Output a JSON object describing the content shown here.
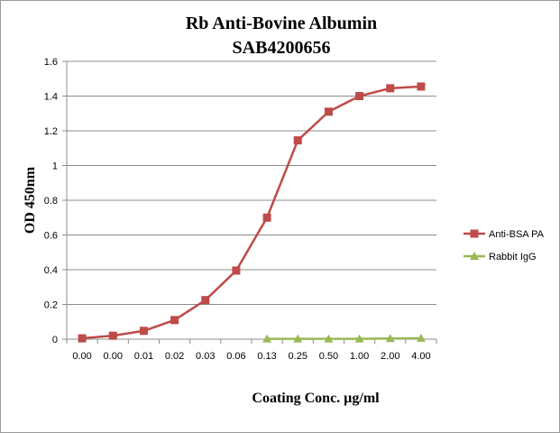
{
  "chart_data": {
    "type": "line",
    "title": "Rb Anti-Bovine Albumin",
    "subtitle": "SAB4200656",
    "xlabel": "Coating Conc. µg/ml",
    "ylabel": "OD 450nm",
    "categories": [
      "0.00",
      "0.00",
      "0.01",
      "0.02",
      "0.03",
      "0.06",
      "0.13",
      "0.25",
      "0.50",
      "1.00",
      "2.00",
      "4.00"
    ],
    "y_ticks": [
      "0",
      "0.2",
      "0.4",
      "0.6",
      "0.8",
      "1",
      "1.2",
      "1.4",
      "1.6"
    ],
    "ylim": [
      0,
      1.6
    ],
    "grid": true,
    "legend_position": "right",
    "series": [
      {
        "name": "Anti-BSA PA",
        "color": "#be4b48",
        "marker": "square",
        "values": [
          0.005,
          0.02,
          0.048,
          0.11,
          0.225,
          0.395,
          0.7,
          1.145,
          1.31,
          1.4,
          1.445,
          1.455
        ]
      },
      {
        "name": "Rabbit IgG",
        "color": "#98b954",
        "marker": "triangle",
        "values": [
          null,
          null,
          null,
          null,
          null,
          null,
          0.002,
          0.002,
          0.002,
          0.002,
          0.004,
          0.006
        ]
      }
    ]
  }
}
